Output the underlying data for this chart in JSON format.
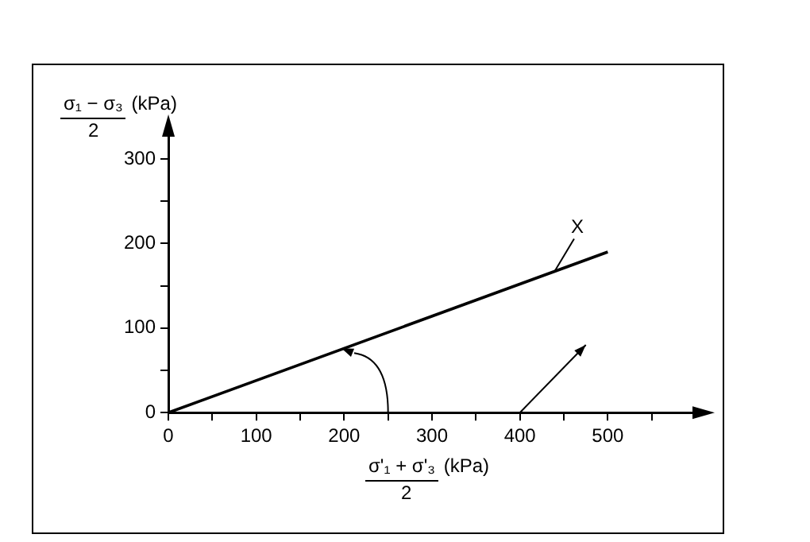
{
  "chart_data": {
    "type": "line",
    "xlabel": "σ'₁ + σ'₃ (kPa)\n2",
    "ylabel": "σ₁ − σ₃ (kPa)\n2",
    "x": [
      0,
      500
    ],
    "series": [
      {
        "color": "#000000",
        "values": [
          0,
          190
        ]
      }
    ],
    "xlim": [
      0,
      600
    ],
    "ylim": [
      0,
      330
    ],
    "xticks": [
      0,
      {
        "value": 50,
        "label": null
      },
      100,
      {
        "value": 150,
        "label": null
      },
      200,
      {
        "value": 250,
        "label": null
      },
      300,
      {
        "value": 350,
        "label": null
      },
      400,
      {
        "value": 450,
        "label": null
      },
      500,
      {
        "value": 550,
        "label": null
      }
    ],
    "yticks": [
      0,
      {
        "value": 50,
        "label": null
      },
      100,
      {
        "value": 150,
        "label": null
      },
      200,
      {
        "value": 250,
        "label": null
      },
      300
    ],
    "marker": "none",
    "legend": false,
    "annotations": [
      {
        "text": "X",
        "x": 440,
        "y": 168
      }
    ]
  }
}
